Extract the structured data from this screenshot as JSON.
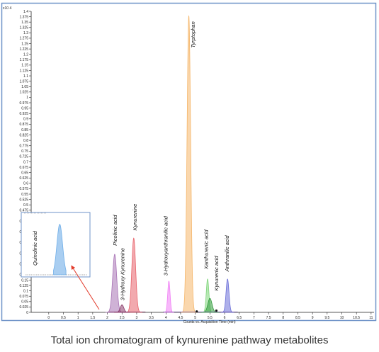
{
  "caption": "Total ion chromatogram of kynurenine pathway metabolites",
  "colors": {
    "frame": "#6f93c8",
    "axis": "#222222",
    "arrow": "#e23a2a"
  },
  "chart_data": {
    "type": "area",
    "xlabel": "Counts vs. Acquisition Time (min)",
    "ylabel": "",
    "y_multiplier_label": "x10 4",
    "xlim": [
      -0.6,
      11.1
    ],
    "ylim": [
      0,
      1.4
    ],
    "x_ticks": [
      "0",
      "0.5",
      "1",
      "1.5",
      "2",
      "2.5",
      "3",
      "3.5",
      "4",
      "4.5",
      "5",
      "5.5",
      "6",
      "6.5",
      "7",
      "7.5",
      "8",
      "8.5",
      "9",
      "9.5",
      "10",
      "10.5",
      "11"
    ],
    "y_ticks": [
      "0",
      "0.025",
      "0.05",
      "0.075",
      "0.1",
      "0.125",
      "0.15",
      "0.175",
      "0.2",
      "0.225",
      "0.25",
      "0.275",
      "0.3",
      "0.325",
      "0.35",
      "0.375",
      "0.4",
      "0.425",
      "0.45",
      "0.475",
      "0.5",
      "0.525",
      "0.55",
      "0.575",
      "0.6",
      "0.625",
      "0.65",
      "0.675",
      "0.7",
      "0.725",
      "0.75",
      "0.775",
      "0.8",
      "0.825",
      "0.85",
      "0.875",
      "0.9",
      "0.925",
      "0.95",
      "0.975",
      "1",
      "1.025",
      "1.05",
      "1.075",
      "1.1",
      "1.125",
      "1.15",
      "1.175",
      "1.2",
      "1.225",
      "1.25",
      "1.275",
      "1.3",
      "1.325",
      "1.35",
      "1.375",
      "1.4"
    ],
    "grid": false,
    "series": [
      {
        "name": "Picolinic acid",
        "rt": 2.25,
        "height": 0.27,
        "width": 0.07,
        "color": "#a872b5"
      },
      {
        "name": "3-Hydroxy Kynurenine",
        "rt": 2.5,
        "height": 0.035,
        "width": 0.06,
        "color": "#8a3a6a"
      },
      {
        "name": "Kynurenine",
        "rt": 2.9,
        "height": 0.345,
        "width": 0.065,
        "color": "#e8636b"
      },
      {
        "name": "3-Hydroxyanthranilic acid",
        "rt": 4.1,
        "height": 0.145,
        "width": 0.04,
        "color": "#f07ef5"
      },
      {
        "name": "Tyrptophan",
        "rt": 4.78,
        "height": 1.38,
        "width": 0.06,
        "color": "#f5b66a"
      },
      {
        "name": "Xanthurenic acid",
        "rt": 5.42,
        "height": 0.155,
        "width": 0.045,
        "color": "#7fd67a"
      },
      {
        "name": "Kynurenic acid",
        "rt": 5.5,
        "height": 0.065,
        "width": 0.07,
        "color": "#2f9a3a"
      },
      {
        "name": "Anthranilic acid",
        "rt": 6.1,
        "height": 0.155,
        "width": 0.05,
        "color": "#6b6fd8"
      }
    ],
    "inset": {
      "name": "Quinolinic acid",
      "color": "#6faee8",
      "peak_position": 0.56,
      "relative_height": 0.86
    }
  }
}
